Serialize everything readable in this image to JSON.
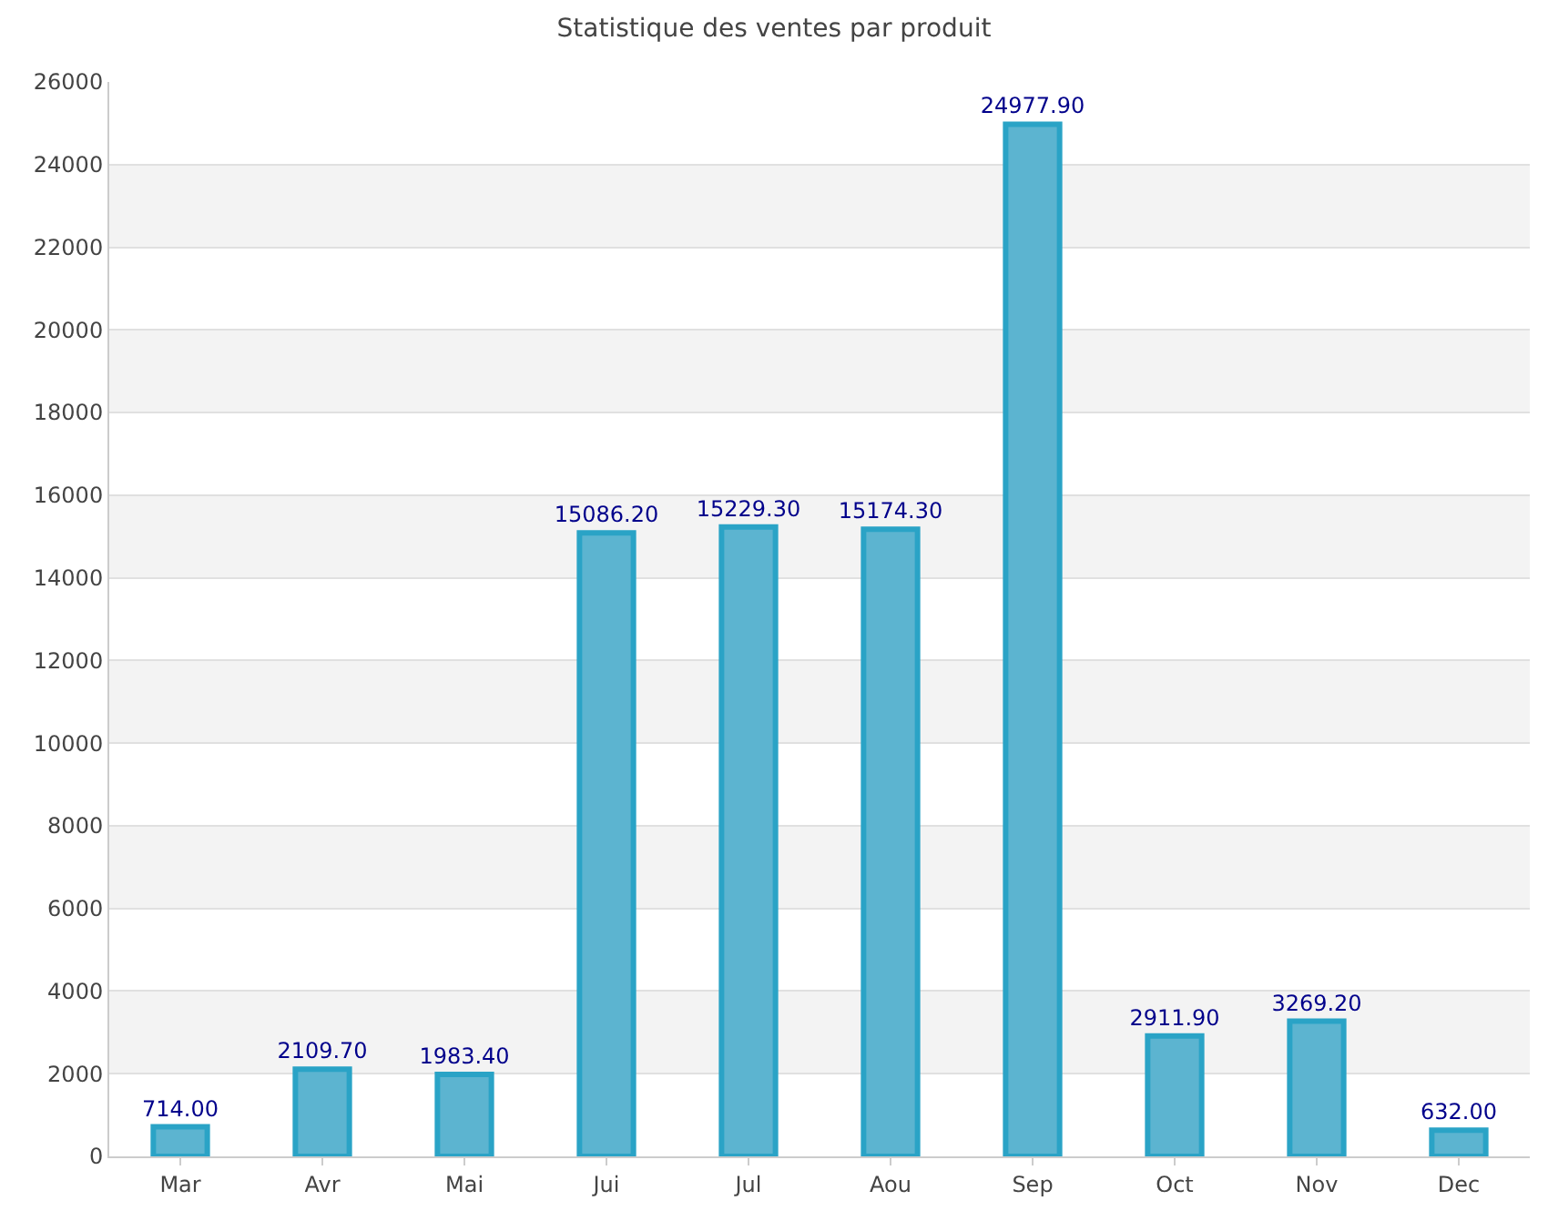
{
  "chart_data": {
    "type": "bar",
    "title": "Statistique des ventes par produit",
    "categories": [
      "Mar",
      "Avr",
      "Mai",
      "Jui",
      "Jul",
      "Aou",
      "Sep",
      "Oct",
      "Nov",
      "Dec"
    ],
    "values": [
      714.0,
      2109.7,
      1983.4,
      15086.2,
      15229.3,
      15174.3,
      24977.9,
      2911.9,
      3269.2,
      632.0
    ],
    "value_labels": [
      "714.00",
      "2109.70",
      "1983.40",
      "15086.20",
      "15229.30",
      "15174.30",
      "24977.90",
      "2911.90",
      "3269.20",
      "632.00"
    ],
    "color": "#5cb4d0",
    "ylim": [
      0,
      26000
    ],
    "yticks": [
      0,
      2000,
      4000,
      6000,
      8000,
      10000,
      12000,
      14000,
      16000,
      18000,
      20000,
      22000,
      24000,
      26000
    ],
    "grid": "y"
  }
}
